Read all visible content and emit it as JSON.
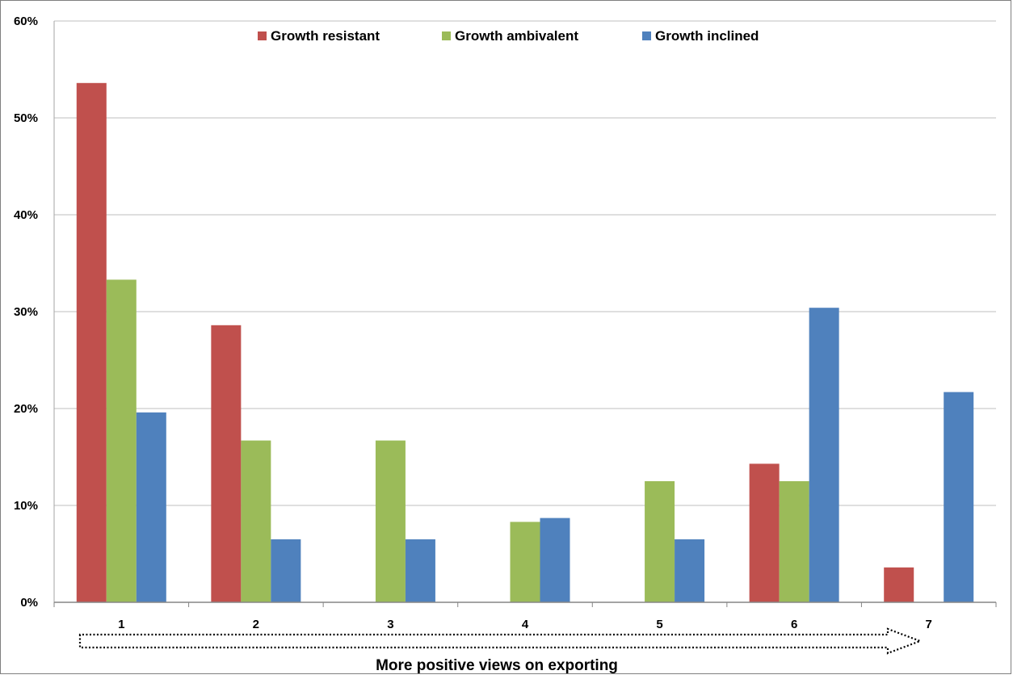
{
  "chart_data": {
    "type": "bar",
    "categories": [
      "1",
      "2",
      "3",
      "4",
      "5",
      "6",
      "7"
    ],
    "series": [
      {
        "name": "Growth resistant",
        "color": "#C0504D",
        "values": [
          53.6,
          28.6,
          0,
          0,
          0,
          14.3,
          3.6
        ]
      },
      {
        "name": "Growth ambivalent",
        "color": "#9BBB59",
        "values": [
          33.3,
          16.7,
          16.7,
          8.3,
          12.5,
          12.5,
          0
        ]
      },
      {
        "name": "Growth inclined",
        "color": "#4F81BD",
        "values": [
          19.6,
          6.5,
          6.5,
          8.7,
          6.5,
          30.4,
          21.7
        ]
      }
    ],
    "ylim": [
      0,
      60
    ],
    "yticks": [
      "0%",
      "10%",
      "20%",
      "30%",
      "40%",
      "50%",
      "60%"
    ],
    "xlabel": "More positive views on exporting",
    "ylabel": "",
    "title": "",
    "grid": true,
    "legend_position": "top-center",
    "annotation": "dotted arrow pointing right under the category axis"
  }
}
